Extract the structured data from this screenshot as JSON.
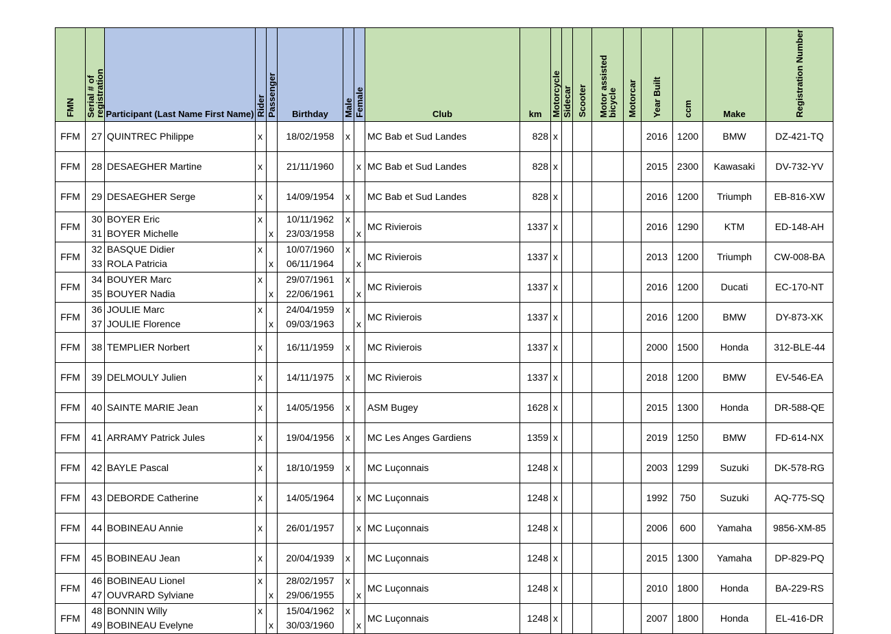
{
  "headers": {
    "fmn": "FMN",
    "serial": "Serial # of registration",
    "participant": "Participant (Last Name First Name)",
    "rider": "Rider",
    "passenger": "Passenger",
    "birthday": "Birthday",
    "male": "Male",
    "female": "Female",
    "club": "Club",
    "km": "km",
    "motorcycle": "Motorcycle",
    "sidecar": "Sidecar",
    "scooter": "Scooter",
    "motor_assisted_bicycle": "Motor assisted bicycle",
    "motorcar": "Motorcar",
    "year_built": "Year Built",
    "ccm": "ccm",
    "make": "Make",
    "registration": "Registration Number"
  },
  "rows": [
    {
      "fmn": "FFM",
      "persons": [
        {
          "serial": "27",
          "name": "QUINTREC Philippe",
          "rider": "x",
          "passenger": "",
          "birthday": "18/02/1958",
          "male": "x",
          "female": ""
        }
      ],
      "club": "MC Bab et Sud Landes",
      "km": "828",
      "motorcycle": "x",
      "year": "2016",
      "ccm": "1200",
      "make": "BMW",
      "reg": "DZ-421-TQ"
    },
    {
      "fmn": "FFM",
      "persons": [
        {
          "serial": "28",
          "name": "DESAEGHER Martine",
          "rider": "x",
          "passenger": "",
          "birthday": "21/11/1960",
          "male": "",
          "female": "x"
        }
      ],
      "club": "MC Bab et Sud Landes",
      "km": "828",
      "motorcycle": "x",
      "year": "2015",
      "ccm": "2300",
      "make": "Kawasaki",
      "reg": "DV-732-YV"
    },
    {
      "fmn": "FFM",
      "persons": [
        {
          "serial": "29",
          "name": "DESAEGHER Serge",
          "rider": "x",
          "passenger": "",
          "birthday": "14/09/1954",
          "male": "x",
          "female": ""
        }
      ],
      "club": "MC Bab et Sud Landes",
      "km": "828",
      "motorcycle": "x",
      "year": "2016",
      "ccm": "1200",
      "make": "Triumph",
      "reg": "EB-816-XW"
    },
    {
      "fmn": "FFM",
      "persons": [
        {
          "serial": "30",
          "name": "BOYER Eric",
          "rider": "x",
          "passenger": "",
          "birthday": "10/11/1962",
          "male": "x",
          "female": ""
        },
        {
          "serial": "31",
          "name": "BOYER Michelle",
          "rider": "",
          "passenger": "x",
          "birthday": "23/03/1958",
          "male": "",
          "female": "x"
        }
      ],
      "club": "MC Rivierois",
      "km": "1337",
      "motorcycle": "x",
      "year": "2016",
      "ccm": "1290",
      "make": "KTM",
      "reg": "ED-148-AH"
    },
    {
      "fmn": "FFM",
      "persons": [
        {
          "serial": "32",
          "name": "BASQUE Didier",
          "rider": "x",
          "passenger": "",
          "birthday": "10/07/1960",
          "male": "x",
          "female": ""
        },
        {
          "serial": "33",
          "name": "ROLA Patricia",
          "rider": "",
          "passenger": "x",
          "birthday": "06/11/1964",
          "male": "",
          "female": "x"
        }
      ],
      "club": "MC Rivierois",
      "km": "1337",
      "motorcycle": "x",
      "year": "2013",
      "ccm": "1200",
      "make": "Triumph",
      "reg": "CW-008-BA"
    },
    {
      "fmn": "FFM",
      "persons": [
        {
          "serial": "34",
          "name": "BOUYER Marc",
          "rider": "x",
          "passenger": "",
          "birthday": "29/07/1961",
          "male": "x",
          "female": ""
        },
        {
          "serial": "35",
          "name": "BOUYER Nadia",
          "rider": "",
          "passenger": "x",
          "birthday": "22/06/1961",
          "male": "",
          "female": "x"
        }
      ],
      "club": "MC Rivierois",
      "km": "1337",
      "motorcycle": "x",
      "year": "2016",
      "ccm": "1200",
      "make": "Ducati",
      "reg": "EC-170-NT"
    },
    {
      "fmn": "FFM",
      "persons": [
        {
          "serial": "36",
          "name": "JOULIE Marc",
          "rider": "x",
          "passenger": "",
          "birthday": "24/04/1959",
          "male": "x",
          "female": ""
        },
        {
          "serial": "37",
          "name": "JOULIE Florence",
          "rider": "",
          "passenger": "x",
          "birthday": "09/03/1963",
          "male": "",
          "female": "x"
        }
      ],
      "club": "MC Rivierois",
      "km": "1337",
      "motorcycle": "x",
      "year": "2016",
      "ccm": "1200",
      "make": "BMW",
      "reg": "DY-873-XK"
    },
    {
      "fmn": "FFM",
      "persons": [
        {
          "serial": "38",
          "name": "TEMPLIER Norbert",
          "rider": "x",
          "passenger": "",
          "birthday": "16/11/1959",
          "male": "x",
          "female": ""
        }
      ],
      "club": "MC Rivierois",
      "km": "1337",
      "motorcycle": "x",
      "year": "2000",
      "ccm": "1500",
      "make": "Honda",
      "reg": "312-BLE-44"
    },
    {
      "fmn": "FFM",
      "persons": [
        {
          "serial": "39",
          "name": "DELMOULY Julien",
          "rider": "x",
          "passenger": "",
          "birthday": "14/11/1975",
          "male": "x",
          "female": ""
        }
      ],
      "club": "MC Rivierois",
      "km": "1337",
      "motorcycle": "x",
      "year": "2018",
      "ccm": "1200",
      "make": "BMW",
      "reg": "EV-546-EA"
    },
    {
      "fmn": "FFM",
      "persons": [
        {
          "serial": "40",
          "name": "SAINTE MARIE Jean",
          "rider": "x",
          "passenger": "",
          "birthday": "14/05/1956",
          "male": "x",
          "female": ""
        }
      ],
      "club": "ASM Bugey",
      "km": "1628",
      "motorcycle": "x",
      "year": "2015",
      "ccm": "1300",
      "make": "Honda",
      "reg": "DR-588-QE"
    },
    {
      "fmn": "FFM",
      "persons": [
        {
          "serial": "41",
          "name": "ARRAMY Patrick Jules",
          "rider": "x",
          "passenger": "",
          "birthday": "19/04/1956",
          "male": "x",
          "female": ""
        }
      ],
      "club": "MC Les Anges Gardiens",
      "km": "1359",
      "motorcycle": "x",
      "year": "2019",
      "ccm": "1250",
      "make": "BMW",
      "reg": "FD-614-NX"
    },
    {
      "fmn": "FFM",
      "persons": [
        {
          "serial": "42",
          "name": "BAYLE Pascal",
          "rider": "x",
          "passenger": "",
          "birthday": "18/10/1959",
          "male": "x",
          "female": ""
        }
      ],
      "club": "MC Luçonnais",
      "km": "1248",
      "motorcycle": "x",
      "year": "2003",
      "ccm": "1299",
      "make": "Suzuki",
      "reg": "DK-578-RG"
    },
    {
      "fmn": "FFM",
      "persons": [
        {
          "serial": "43",
          "name": "DEBORDE Catherine",
          "rider": "x",
          "passenger": "",
          "birthday": "14/05/1964",
          "male": "",
          "female": "x"
        }
      ],
      "club": "MC Luçonnais",
      "km": "1248",
      "motorcycle": "x",
      "year": "1992",
      "ccm": "750",
      "make": "Suzuki",
      "reg": "AQ-775-SQ"
    },
    {
      "fmn": "FFM",
      "persons": [
        {
          "serial": "44",
          "name": "BOBINEAU Annie",
          "rider": "x",
          "passenger": "",
          "birthday": "26/01/1957",
          "male": "",
          "female": "x"
        }
      ],
      "club": "MC Luçonnais",
      "km": "1248",
      "motorcycle": "x",
      "year": "2006",
      "ccm": "600",
      "make": "Yamaha",
      "reg": "9856-XM-85"
    },
    {
      "fmn": "FFM",
      "persons": [
        {
          "serial": "45",
          "name": "BOBINEAU Jean",
          "rider": "x",
          "passenger": "",
          "birthday": "20/04/1939",
          "male": "x",
          "female": ""
        }
      ],
      "club": "MC Luçonnais",
      "km": "1248",
      "motorcycle": "x",
      "year": "2015",
      "ccm": "1300",
      "make": "Yamaha",
      "reg": "DP-829-PQ"
    },
    {
      "fmn": "FFM",
      "persons": [
        {
          "serial": "46",
          "name": "BOBINEAU Lionel",
          "rider": "x",
          "passenger": "",
          "birthday": "28/02/1957",
          "male": "x",
          "female": ""
        },
        {
          "serial": "47",
          "name": "OUVRARD Sylviane",
          "rider": "",
          "passenger": "x",
          "birthday": "29/06/1955",
          "male": "",
          "female": "x"
        }
      ],
      "club": "MC Luçonnais",
      "km": "1248",
      "motorcycle": "x",
      "year": "2010",
      "ccm": "1800",
      "make": "Honda",
      "reg": "BA-229-RS"
    },
    {
      "fmn": "FFM",
      "persons": [
        {
          "serial": "48",
          "name": "BONNIN Willy",
          "rider": "x",
          "passenger": "",
          "birthday": "15/04/1962",
          "male": "x",
          "female": ""
        },
        {
          "serial": "49",
          "name": "BOBINEAU Evelyne",
          "rider": "",
          "passenger": "x",
          "birthday": "30/03/1960",
          "male": "",
          "female": "x"
        }
      ],
      "club": "MC Luçonnais",
      "km": "1248",
      "motorcycle": "x",
      "year": "2007",
      "ccm": "1800",
      "make": "Honda",
      "reg": "EL-416-DR"
    }
  ]
}
